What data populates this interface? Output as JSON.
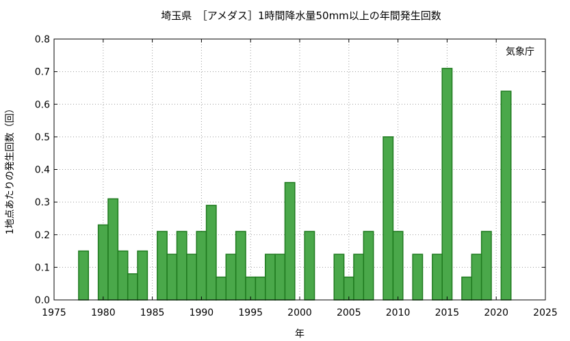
{
  "chart_data": {
    "type": "bar",
    "title": "埼玉県　［アメダス］1時間降水量50mm以上の年間発生回数",
    "xlabel": "年",
    "ylabel": "1地点あたりの発生回数（回）",
    "annotation": "気象庁",
    "xlim": [
      1975,
      2025
    ],
    "ylim": [
      0,
      0.8
    ],
    "x_ticks": [
      "1975",
      "1980",
      "1985",
      "1990",
      "1995",
      "2000",
      "2005",
      "2010",
      "2015",
      "2020",
      "2025"
    ],
    "y_ticks": [
      "0.0",
      "0.1",
      "0.2",
      "0.3",
      "0.4",
      "0.5",
      "0.6",
      "0.7",
      "0.8"
    ],
    "grid": true,
    "bar_color": "#4aa84a",
    "bar_edge_color": "#1f7a1f",
    "years": [
      1976,
      1977,
      1978,
      1979,
      1980,
      1981,
      1982,
      1983,
      1984,
      1985,
      1986,
      1987,
      1988,
      1989,
      1990,
      1991,
      1992,
      1993,
      1994,
      1995,
      1996,
      1997,
      1998,
      1999,
      2000,
      2001,
      2002,
      2003,
      2004,
      2005,
      2006,
      2007,
      2008,
      2009,
      2010,
      2011,
      2012,
      2013,
      2014,
      2015,
      2016,
      2017,
      2018,
      2019,
      2020,
      2021,
      2022
    ],
    "values": [
      0,
      0,
      0.15,
      0,
      0.23,
      0.31,
      0.15,
      0.08,
      0.15,
      0,
      0.21,
      0.14,
      0.21,
      0.14,
      0.21,
      0.29,
      0.07,
      0.14,
      0.21,
      0.07,
      0.07,
      0.14,
      0.14,
      0.36,
      0,
      0.21,
      0,
      0,
      0.14,
      0.07,
      0.14,
      0.21,
      0,
      0.5,
      0.21,
      0,
      0.14,
      0,
      0.14,
      0.71,
      0,
      0.07,
      0.14,
      0.21,
      0,
      0.64,
      0
    ]
  }
}
